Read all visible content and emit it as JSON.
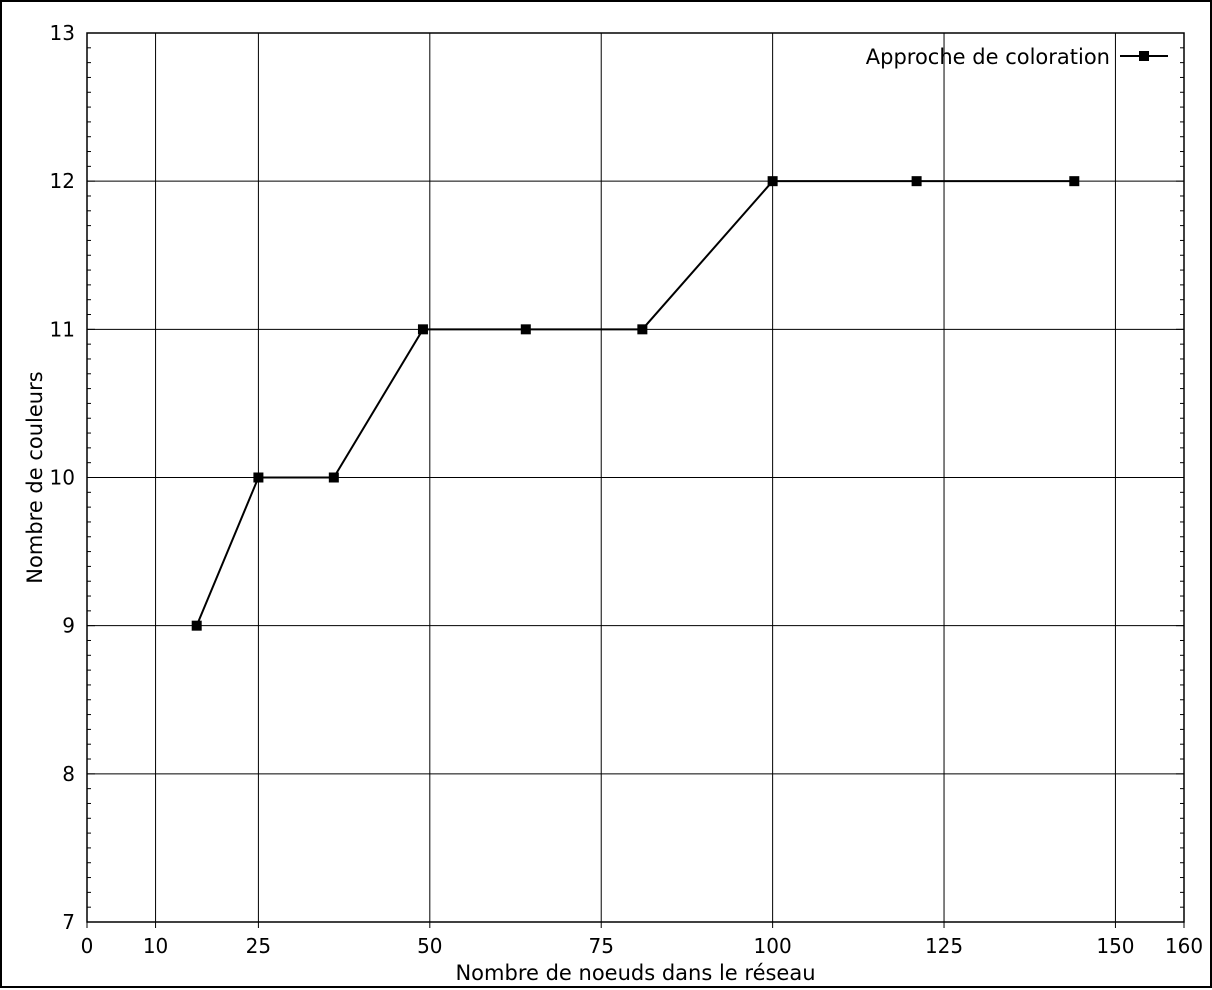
{
  "chart_data": {
    "type": "line",
    "xlabel": "Nombre de noeuds dans le réseau",
    "ylabel": "Nombre de couleurs",
    "xlim": [
      0,
      160
    ],
    "ylim": [
      7,
      13
    ],
    "x_ticks": [
      0,
      10,
      25,
      50,
      75,
      100,
      125,
      150,
      160
    ],
    "y_ticks": [
      7,
      8,
      9,
      10,
      11,
      12,
      13
    ],
    "grid": true,
    "legend_position": "top-right",
    "series": [
      {
        "name": "Approche de coloration",
        "color": "#000000",
        "marker": "square",
        "x": [
          16,
          25,
          36,
          49,
          64,
          81,
          100,
          121,
          144
        ],
        "y": [
          9,
          10,
          10,
          11,
          11,
          11,
          12,
          12,
          12
        ]
      }
    ]
  }
}
